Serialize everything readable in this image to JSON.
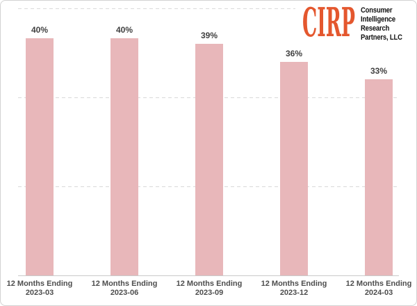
{
  "logo": {
    "brand": "CIRP",
    "brand_color": "#E4572E",
    "company_lines": [
      "Consumer",
      "Intelligence",
      "Research",
      "Partners, LLC"
    ]
  },
  "chart_data": {
    "type": "bar",
    "title": "",
    "xlabel": "",
    "ylabel": "",
    "categories": [
      "12 Months Ending\n2023-03",
      "12 Months Ending\n2023-06",
      "12 Months Ending\n2023-09",
      "12 Months Ending\n2023-12",
      "12 Months Ending\n2024-03"
    ],
    "values": [
      40,
      40,
      39,
      36,
      33
    ],
    "value_labels": [
      "40%",
      "40%",
      "39%",
      "36%",
      "33%"
    ],
    "unit": "%",
    "ylim": [
      0,
      45
    ],
    "gridlines_percent": [
      15,
      30,
      45
    ],
    "grid_style": "horizontal dashed",
    "legend": "none",
    "bar_color": "#E8B7BA",
    "value_label_color": "#404040",
    "axis_label_color": "#4D4D4D",
    "gridline_color": "#D9D9D9",
    "axis_line_color": "#C9C9C9"
  }
}
